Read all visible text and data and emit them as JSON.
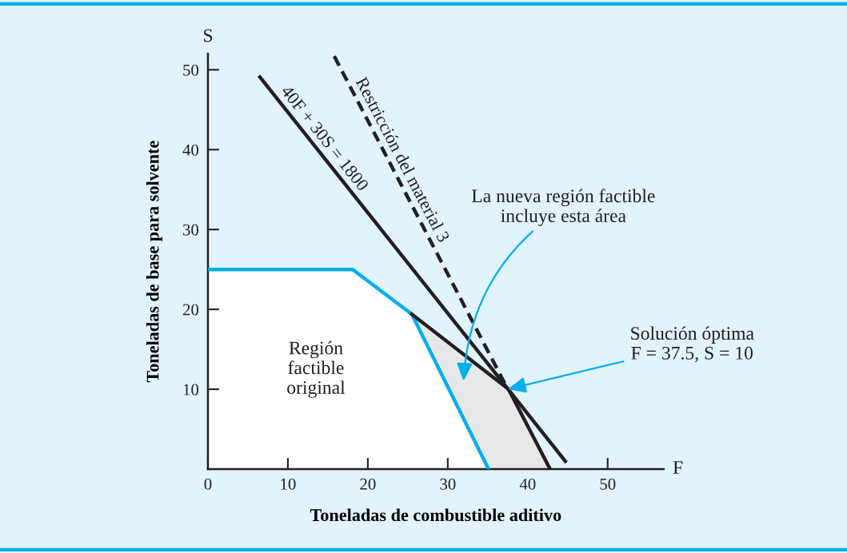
{
  "chart_data": {
    "type": "line",
    "xlabel": "Toneladas de combustible aditivo",
    "ylabel": "Toneladas de base para solvente",
    "xlim": [
      0,
      57
    ],
    "ylim": [
      0,
      52
    ],
    "xticks": [
      0,
      10,
      20,
      30,
      40,
      50
    ],
    "yticks": [
      10,
      20,
      30,
      40,
      50
    ],
    "grid": false,
    "legend": false,
    "marker": "none",
    "series": [
      {
        "type": "area",
        "color": "#00aeef",
        "x": [
          0,
          18.1,
          25.5,
          35.1
        ],
        "values": [
          25,
          25,
          19.4,
          0
        ]
      },
      {
        "name": "40F + 30S = 1800",
        "color": "#231f20",
        "x": [
          6.5,
          44.7
        ],
        "values": [
          49.1,
          1.0
        ]
      },
      {
        "name": "Restricción del material 3",
        "color": "#231f20",
        "line_style": "dashed",
        "x": [
          15.8,
          37.4
        ],
        "values": [
          51.7,
          10.2
        ]
      },
      {
        "color": "#231f20",
        "x": [
          25.5,
          37.6,
          42.8
        ],
        "values": [
          19.4,
          10,
          0
        ]
      }
    ],
    "annotations": [
      "La nueva región factible\nincluye esta área",
      {
        "text": "Solución óptima\nF = 37.5, S = 10",
        "x": 37.5,
        "y": 10
      },
      "Región\nfactible\noriginal",
      "F",
      "S"
    ]
  }
}
